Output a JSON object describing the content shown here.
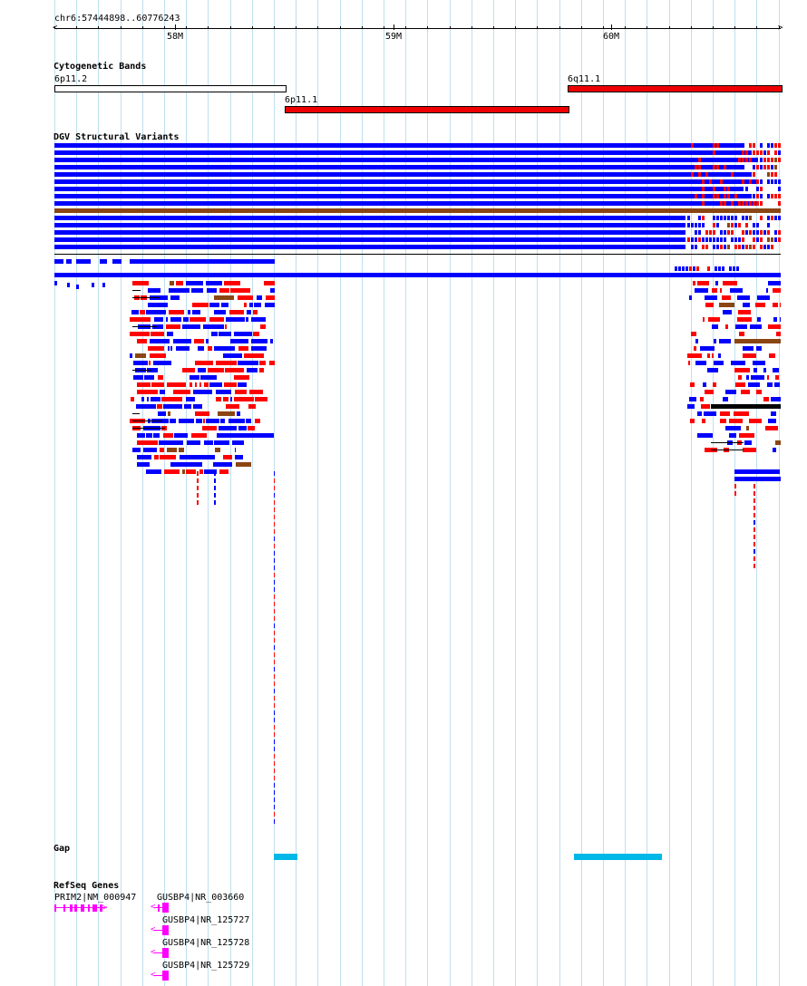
{
  "ruler": {
    "location": "chr6:57444898..60776243",
    "start_bp": 57444898,
    "end_bp": 60776243,
    "ticks": [
      {
        "label": "58M",
        "bp": 58000000
      },
      {
        "label": "59M",
        "bp": 59000000
      },
      {
        "label": "60M",
        "bp": 60000000
      }
    ]
  },
  "tracks": {
    "cytobands": {
      "title": "Cytogenetic Bands",
      "bands": [
        {
          "name": "6p11.2",
          "start": 57444898,
          "end": 58500000,
          "stain": "gneg"
        },
        {
          "name": "6p11.1",
          "start": 58500000,
          "end": 59800000,
          "stain": "acen"
        },
        {
          "name": "6q11.1",
          "start": 59800000,
          "end": 60776243,
          "stain": "acen"
        }
      ]
    },
    "dgv": {
      "title": "DGV Structural Variants",
      "colors": {
        "loss": "#ff0000",
        "gain": "#0000ff",
        "complex": "#8b4513",
        "inversion": "#000000"
      }
    },
    "gap": {
      "title": "Gap",
      "color": "#00b8e8",
      "items": [
        {
          "start": 58450000,
          "end": 58560000
        },
        {
          "start": 59830000,
          "end": 60230000
        }
      ]
    },
    "refseq": {
      "title": "RefSeq Genes",
      "color": "#ff00ff",
      "genes": [
        {
          "label": "PRIM2|NM_000947",
          "strand": "+"
        },
        {
          "label": "GUSBP4|NR_003660",
          "strand": "-"
        },
        {
          "label": "GUSBP4|NR_125727",
          "strand": "-"
        },
        {
          "label": "GUSBP4|NR_125728",
          "strand": "-"
        },
        {
          "label": "GUSBP4|NR_125729",
          "strand": "-"
        }
      ]
    }
  }
}
